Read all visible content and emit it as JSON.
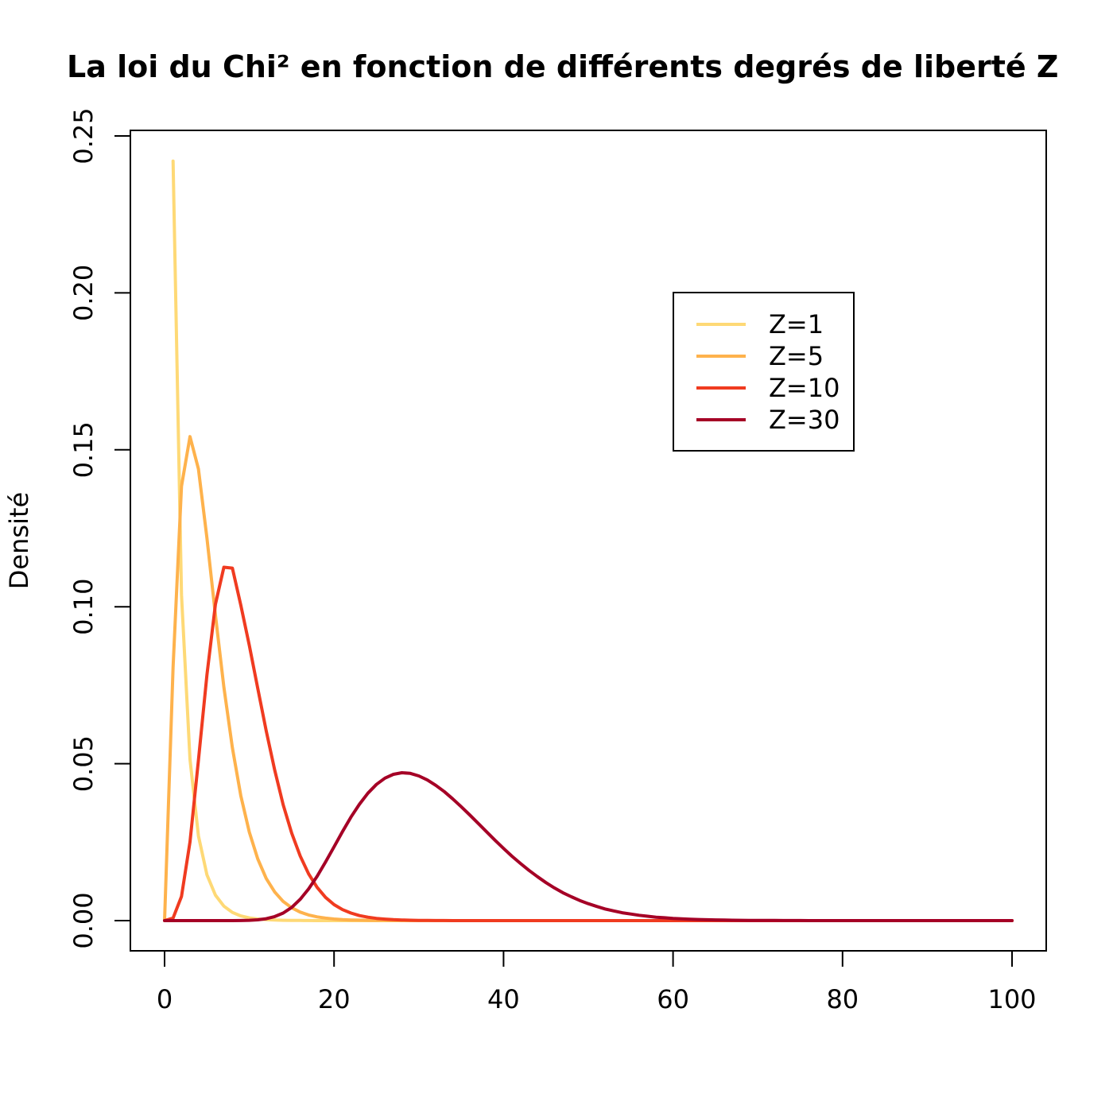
{
  "chart_data": {
    "type": "line",
    "title": "La loi du Chi² en fonction de différents degrés de liberté Z",
    "xlabel": "",
    "ylabel": "Densité",
    "xlim": [
      0,
      100
    ],
    "ylim": [
      0,
      0.25
    ],
    "x_ticks": [
      "0",
      "20",
      "40",
      "60",
      "80",
      "100"
    ],
    "y_ticks": [
      "0.00",
      "0.05",
      "0.10",
      "0.15",
      "0.20",
      "0.25"
    ],
    "grid": false,
    "legend_position": "top-right",
    "x": [
      0,
      1,
      2,
      3,
      4,
      5,
      6,
      7,
      8,
      9,
      10,
      11,
      12,
      13,
      14,
      15,
      16,
      17,
      18,
      19,
      20,
      21,
      22,
      23,
      24,
      25,
      26,
      27,
      28,
      29,
      30,
      31,
      32,
      33,
      34,
      35,
      36,
      37,
      38,
      39,
      40,
      41,
      42,
      43,
      44,
      45,
      46,
      47,
      48,
      49,
      50,
      51,
      52,
      53,
      54,
      55,
      56,
      57,
      58,
      59,
      60,
      61,
      62,
      63,
      64,
      65,
      66,
      67,
      68,
      69,
      70,
      71,
      72,
      73,
      74,
      75,
      76,
      77,
      78,
      79,
      80,
      81,
      82,
      83,
      84,
      85,
      86,
      87,
      88,
      89,
      90,
      91,
      92,
      93,
      94,
      95,
      96,
      97,
      98,
      99,
      100
    ],
    "series": [
      {
        "name": "Z=1",
        "color": "#FED976",
        "values": [
          0,
          0.242,
          0.1038,
          0.0514,
          0.027,
          0.0146,
          0.0081,
          0.0046,
          0.0026,
          0.0015,
          0.00085,
          0.0005,
          0.0003,
          0.00017,
          0.0001,
          6e-05,
          4e-05,
          2e-05,
          1e-05,
          1e-05,
          0,
          0,
          0,
          0,
          0,
          0,
          0,
          0,
          0,
          0,
          0,
          0,
          0,
          0,
          0,
          0,
          0,
          0,
          0,
          0,
          0,
          0,
          0,
          0,
          0,
          0,
          0,
          0,
          0,
          0,
          0,
          0,
          0,
          0,
          0,
          0,
          0,
          0,
          0,
          0,
          0,
          0,
          0,
          0,
          0,
          0,
          0,
          0,
          0,
          0,
          0,
          0,
          0,
          0,
          0,
          0,
          0,
          0,
          0,
          0,
          0,
          0,
          0,
          0,
          0,
          0,
          0,
          0,
          0,
          0,
          0,
          0,
          0,
          0,
          0,
          0,
          0,
          0,
          0,
          0,
          0
        ]
      },
      {
        "name": "Z=5",
        "color": "#FEB24C",
        "values": [
          0,
          0.0807,
          0.1384,
          0.1542,
          0.1439,
          0.1219,
          0.0973,
          0.0744,
          0.0551,
          0.0398,
          0.0282,
          0.0196,
          0.0134,
          0.0091,
          0.0061,
          0.0041,
          0.0027,
          0.0018,
          0.0012,
          0.0008,
          0.0005,
          0.0003,
          0.0002,
          0.00014,
          9e-05,
          6e-05,
          4e-05,
          3e-05,
          2e-05,
          1e-05,
          1e-05,
          0,
          0,
          0,
          0,
          0,
          0,
          0,
          0,
          0,
          0,
          0,
          0,
          0,
          0,
          0,
          0,
          0,
          0,
          0,
          0,
          0,
          0,
          0,
          0,
          0,
          0,
          0,
          0,
          0,
          0,
          0,
          0,
          0,
          0,
          0,
          0,
          0,
          0,
          0,
          0,
          0,
          0,
          0,
          0,
          0,
          0,
          0,
          0,
          0,
          0,
          0,
          0,
          0,
          0,
          0,
          0,
          0,
          0,
          0,
          0,
          0,
          0,
          0,
          0,
          0,
          0,
          0,
          0,
          0,
          0
        ]
      },
      {
        "name": "Z=10",
        "color": "#F03B20",
        "values": [
          0,
          0.0008,
          0.0077,
          0.0251,
          0.0511,
          0.0783,
          0.1008,
          0.1126,
          0.1123,
          0.1005,
          0.0877,
          0.0739,
          0.0604,
          0.0479,
          0.0369,
          0.0279,
          0.0206,
          0.0149,
          0.0106,
          0.0074,
          0.0051,
          0.0035,
          0.0024,
          0.0016,
          0.0011,
          0.0007,
          0.00047,
          0.0003,
          0.0002,
          0.00013,
          8e-05,
          5e-05,
          3e-05,
          2e-05,
          1e-05,
          1e-05,
          0,
          0,
          0,
          0,
          0,
          0,
          0,
          0,
          0,
          0,
          0,
          0,
          0,
          0,
          0,
          0,
          0,
          0,
          0,
          0,
          0,
          0,
          0,
          0,
          0,
          0,
          0,
          0,
          0,
          0,
          0,
          0,
          0,
          0,
          0,
          0,
          0,
          0,
          0,
          0,
          0,
          0,
          0,
          0,
          0,
          0,
          0,
          0,
          0,
          0,
          0,
          0,
          0,
          0,
          0,
          0,
          0,
          0,
          0,
          0,
          0,
          0,
          0,
          0,
          0
        ]
      },
      {
        "name": "Z=30",
        "color": "#A50026",
        "values": [
          0,
          0,
          0,
          0,
          0,
          0,
          0,
          0,
          1e-05,
          3e-05,
          0.0001,
          0.00025,
          0.0006,
          0.0013,
          0.0024,
          0.0042,
          0.0068,
          0.0101,
          0.0141,
          0.0187,
          0.0235,
          0.0284,
          0.033,
          0.0371,
          0.0406,
          0.0434,
          0.0454,
          0.0466,
          0.0471,
          0.0469,
          0.0461,
          0.0448,
          0.0431,
          0.0411,
          0.0388,
          0.0363,
          0.0337,
          0.031,
          0.0283,
          0.0256,
          0.023,
          0.0205,
          0.0182,
          0.016,
          0.014,
          0.0121,
          0.0104,
          0.0089,
          0.0076,
          0.0064,
          0.0054,
          0.0045,
          0.0037,
          0.0031,
          0.0025,
          0.0021,
          0.0017,
          0.0014,
          0.0011,
          0.0009,
          0.0007,
          0.00057,
          0.00045,
          0.00035,
          0.00028,
          0.00022,
          0.00017,
          0.00013,
          0.0001,
          8e-05,
          6e-05,
          5e-05,
          4e-05,
          3e-05,
          2e-05,
          2e-05,
          1e-05,
          1e-05,
          1e-05,
          0,
          0,
          0,
          0,
          0,
          0,
          0,
          0,
          0,
          0,
          0,
          0,
          0,
          0,
          0,
          0,
          0,
          0,
          0,
          0,
          0,
          0
        ]
      }
    ]
  }
}
